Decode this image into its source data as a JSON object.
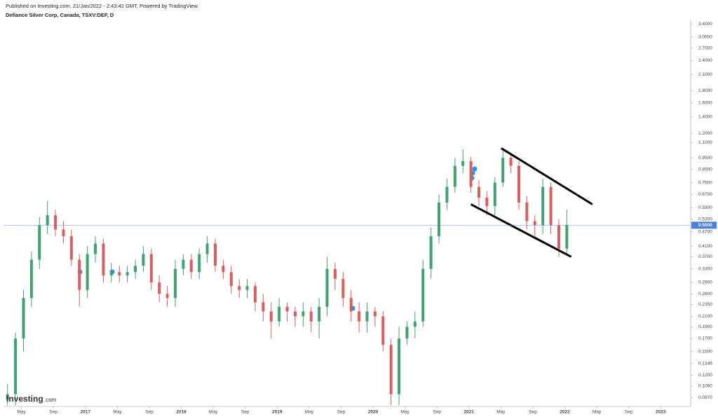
{
  "header": {
    "published": "Published on Investing.com, 21/Jan/2022 - 2:43:42 GMT, Powered by TradingView.",
    "symbol": "Defiance Silver Corp, Canada, TSXV:DEF, D"
  },
  "logo": {
    "name": "Investing",
    "suffix": ".com"
  },
  "chart_data": {
    "type": "candlestick",
    "x": [
      1,
      3,
      5,
      7,
      9,
      11,
      13,
      15,
      17,
      19,
      21,
      23,
      25,
      27,
      29,
      31,
      33,
      35,
      37,
      39,
      41,
      43,
      45,
      47,
      49,
      51,
      53,
      55,
      57,
      59,
      61,
      63,
      65,
      67,
      69,
      71,
      73,
      75,
      77,
      79,
      81,
      83,
      85,
      87,
      89,
      91,
      93,
      95,
      97,
      99,
      101,
      103,
      105,
      107,
      109,
      111,
      113,
      115,
      117,
      119,
      121,
      123,
      125,
      127,
      129,
      131,
      133,
      135,
      137,
      139,
      141
    ],
    "open": [
      0.095,
      0.1,
      0.17,
      0.25,
      0.36,
      0.5,
      0.55,
      0.48,
      0.45,
      0.36,
      0.27,
      0.38,
      0.42,
      0.31,
      0.32,
      0.31,
      0.32,
      0.34,
      0.38,
      0.29,
      0.26,
      0.25,
      0.33,
      0.36,
      0.32,
      0.38,
      0.42,
      0.34,
      0.32,
      0.28,
      0.27,
      0.28,
      0.24,
      0.22,
      0.2,
      0.23,
      0.22,
      0.21,
      0.22,
      0.2,
      0.23,
      0.33,
      0.3,
      0.25,
      0.22,
      0.2,
      0.22,
      0.21,
      0.16,
      0.1,
      0.17,
      0.19,
      0.2,
      0.33,
      0.45,
      0.62,
      0.72,
      0.88,
      0.92,
      0.72,
      0.65,
      0.6,
      0.75,
      0.95,
      0.88,
      0.62,
      0.52,
      0.5,
      0.72,
      0.5,
      0.4
    ],
    "high": [
      0.11,
      0.18,
      0.27,
      0.39,
      0.54,
      0.63,
      0.58,
      0.52,
      0.48,
      0.38,
      0.41,
      0.45,
      0.44,
      0.35,
      0.34,
      0.34,
      0.36,
      0.41,
      0.4,
      0.31,
      0.28,
      0.36,
      0.38,
      0.38,
      0.4,
      0.45,
      0.44,
      0.36,
      0.34,
      0.3,
      0.3,
      0.29,
      0.26,
      0.24,
      0.25,
      0.24,
      0.23,
      0.24,
      0.23,
      0.25,
      0.37,
      0.35,
      0.32,
      0.27,
      0.24,
      0.24,
      0.23,
      0.22,
      0.17,
      0.19,
      0.2,
      0.22,
      0.36,
      0.49,
      0.67,
      0.78,
      0.95,
      1.03,
      0.96,
      0.77,
      0.69,
      0.79,
      1.02,
      0.99,
      0.92,
      0.66,
      0.55,
      0.78,
      0.75,
      0.53,
      0.58
    ],
    "low": [
      0.09,
      0.09,
      0.15,
      0.23,
      0.33,
      0.46,
      0.45,
      0.42,
      0.34,
      0.23,
      0.25,
      0.35,
      0.29,
      0.29,
      0.29,
      0.29,
      0.3,
      0.32,
      0.27,
      0.24,
      0.23,
      0.23,
      0.31,
      0.3,
      0.3,
      0.35,
      0.32,
      0.3,
      0.26,
      0.25,
      0.25,
      0.22,
      0.2,
      0.17,
      0.19,
      0.2,
      0.19,
      0.19,
      0.18,
      0.17,
      0.21,
      0.27,
      0.23,
      0.2,
      0.18,
      0.18,
      0.19,
      0.15,
      0.09,
      0.09,
      0.16,
      0.17,
      0.19,
      0.3,
      0.42,
      0.58,
      0.68,
      0.82,
      0.68,
      0.6,
      0.55,
      0.55,
      0.72,
      0.82,
      0.58,
      0.48,
      0.45,
      0.46,
      0.46,
      0.37,
      0.38
    ],
    "close": [
      0.1,
      0.17,
      0.25,
      0.36,
      0.5,
      0.55,
      0.48,
      0.45,
      0.36,
      0.27,
      0.38,
      0.42,
      0.31,
      0.32,
      0.31,
      0.32,
      0.34,
      0.38,
      0.29,
      0.26,
      0.25,
      0.33,
      0.36,
      0.32,
      0.38,
      0.42,
      0.34,
      0.32,
      0.28,
      0.27,
      0.28,
      0.24,
      0.22,
      0.2,
      0.23,
      0.22,
      0.21,
      0.22,
      0.2,
      0.23,
      0.33,
      0.3,
      0.25,
      0.22,
      0.2,
      0.22,
      0.21,
      0.16,
      0.1,
      0.17,
      0.19,
      0.2,
      0.33,
      0.45,
      0.62,
      0.72,
      0.88,
      0.92,
      0.72,
      0.65,
      0.6,
      0.75,
      0.95,
      0.88,
      0.62,
      0.52,
      0.5,
      0.72,
      0.5,
      0.4,
      0.5
    ],
    "up_color": "#3fa371",
    "down_color": "#e05c5c",
    "xlim": [
      0,
      172
    ],
    "xticks": [
      {
        "value": 4.5,
        "label": "May"
      },
      {
        "value": 12.5,
        "label": "Sep"
      },
      {
        "value": 20.5,
        "label": "2017"
      },
      {
        "value": 28.5,
        "label": "May"
      },
      {
        "value": 36.5,
        "label": "Sep"
      },
      {
        "value": 44.5,
        "label": "2018"
      },
      {
        "value": 52.5,
        "label": "May"
      },
      {
        "value": 60.5,
        "label": "Sep"
      },
      {
        "value": 68.5,
        "label": "2019"
      },
      {
        "value": 76.5,
        "label": "May"
      },
      {
        "value": 84.5,
        "label": "Sep"
      },
      {
        "value": 92.5,
        "label": "2020"
      },
      {
        "value": 100.5,
        "label": "May"
      },
      {
        "value": 108.5,
        "label": "Sep"
      },
      {
        "value": 116.5,
        "label": "2021"
      },
      {
        "value": 124.5,
        "label": "May"
      },
      {
        "value": 132.5,
        "label": "Sep"
      },
      {
        "value": 140.5,
        "label": "2022"
      },
      {
        "value": 148.5,
        "label": "May"
      },
      {
        "value": 156.5,
        "label": "Sep"
      },
      {
        "value": 164.5,
        "label": "2023"
      }
    ],
    "ylim": [
      0.089,
      3.54
    ],
    "ylog": true,
    "yticks": [
      {
        "value": 3.4,
        "label": "3.4000"
      },
      {
        "value": 3.0,
        "label": "3.0000"
      },
      {
        "value": 2.7,
        "label": "2.7000"
      },
      {
        "value": 2.4,
        "label": "2.4000"
      },
      {
        "value": 2.1,
        "label": "2.1000"
      },
      {
        "value": 1.8,
        "label": "1.8000"
      },
      {
        "value": 1.6,
        "label": "1.6000"
      },
      {
        "value": 1.4,
        "label": "1.4000"
      },
      {
        "value": 1.2,
        "label": "1.2000"
      },
      {
        "value": 1.1,
        "label": "1.1000"
      },
      {
        "value": 0.95,
        "label": "0.9500"
      },
      {
        "value": 0.85,
        "label": "0.8500"
      },
      {
        "value": 0.75,
        "label": "0.7500"
      },
      {
        "value": 0.67,
        "label": "0.6700"
      },
      {
        "value": 0.59,
        "label": "0.5900"
      },
      {
        "value": 0.53,
        "label": "0.5300"
      },
      {
        "value": 0.47,
        "label": "0.4700"
      },
      {
        "value": 0.41,
        "label": "0.4100"
      },
      {
        "value": 0.37,
        "label": "0.3700"
      },
      {
        "value": 0.33,
        "label": "0.3300"
      },
      {
        "value": 0.29,
        "label": "0.2900"
      },
      {
        "value": 0.26,
        "label": "0.2600"
      },
      {
        "value": 0.235,
        "label": "0.2350"
      },
      {
        "value": 0.21,
        "label": "0.2100"
      },
      {
        "value": 0.19,
        "label": "0.1900"
      },
      {
        "value": 0.17,
        "label": "0.1700"
      },
      {
        "value": 0.15,
        "label": "0.1500"
      },
      {
        "value": 0.134,
        "label": "0.1340"
      },
      {
        "value": 0.12,
        "label": "0.1200"
      },
      {
        "value": 0.108,
        "label": "0.1080"
      },
      {
        "value": 0.097,
        "label": "0.0970"
      }
    ],
    "last_price": {
      "value": 0.5,
      "label": "0.5000",
      "color": "#4a7fe0"
    },
    "trend_lines": [
      {
        "x": [
          124.6,
          147.4
        ],
        "y": [
          1.04,
          0.61
        ]
      },
      {
        "x": [
          117,
          142.1
        ],
        "y": [
          0.61,
          0.37
        ]
      }
    ],
    "trend_color": "#000000"
  }
}
